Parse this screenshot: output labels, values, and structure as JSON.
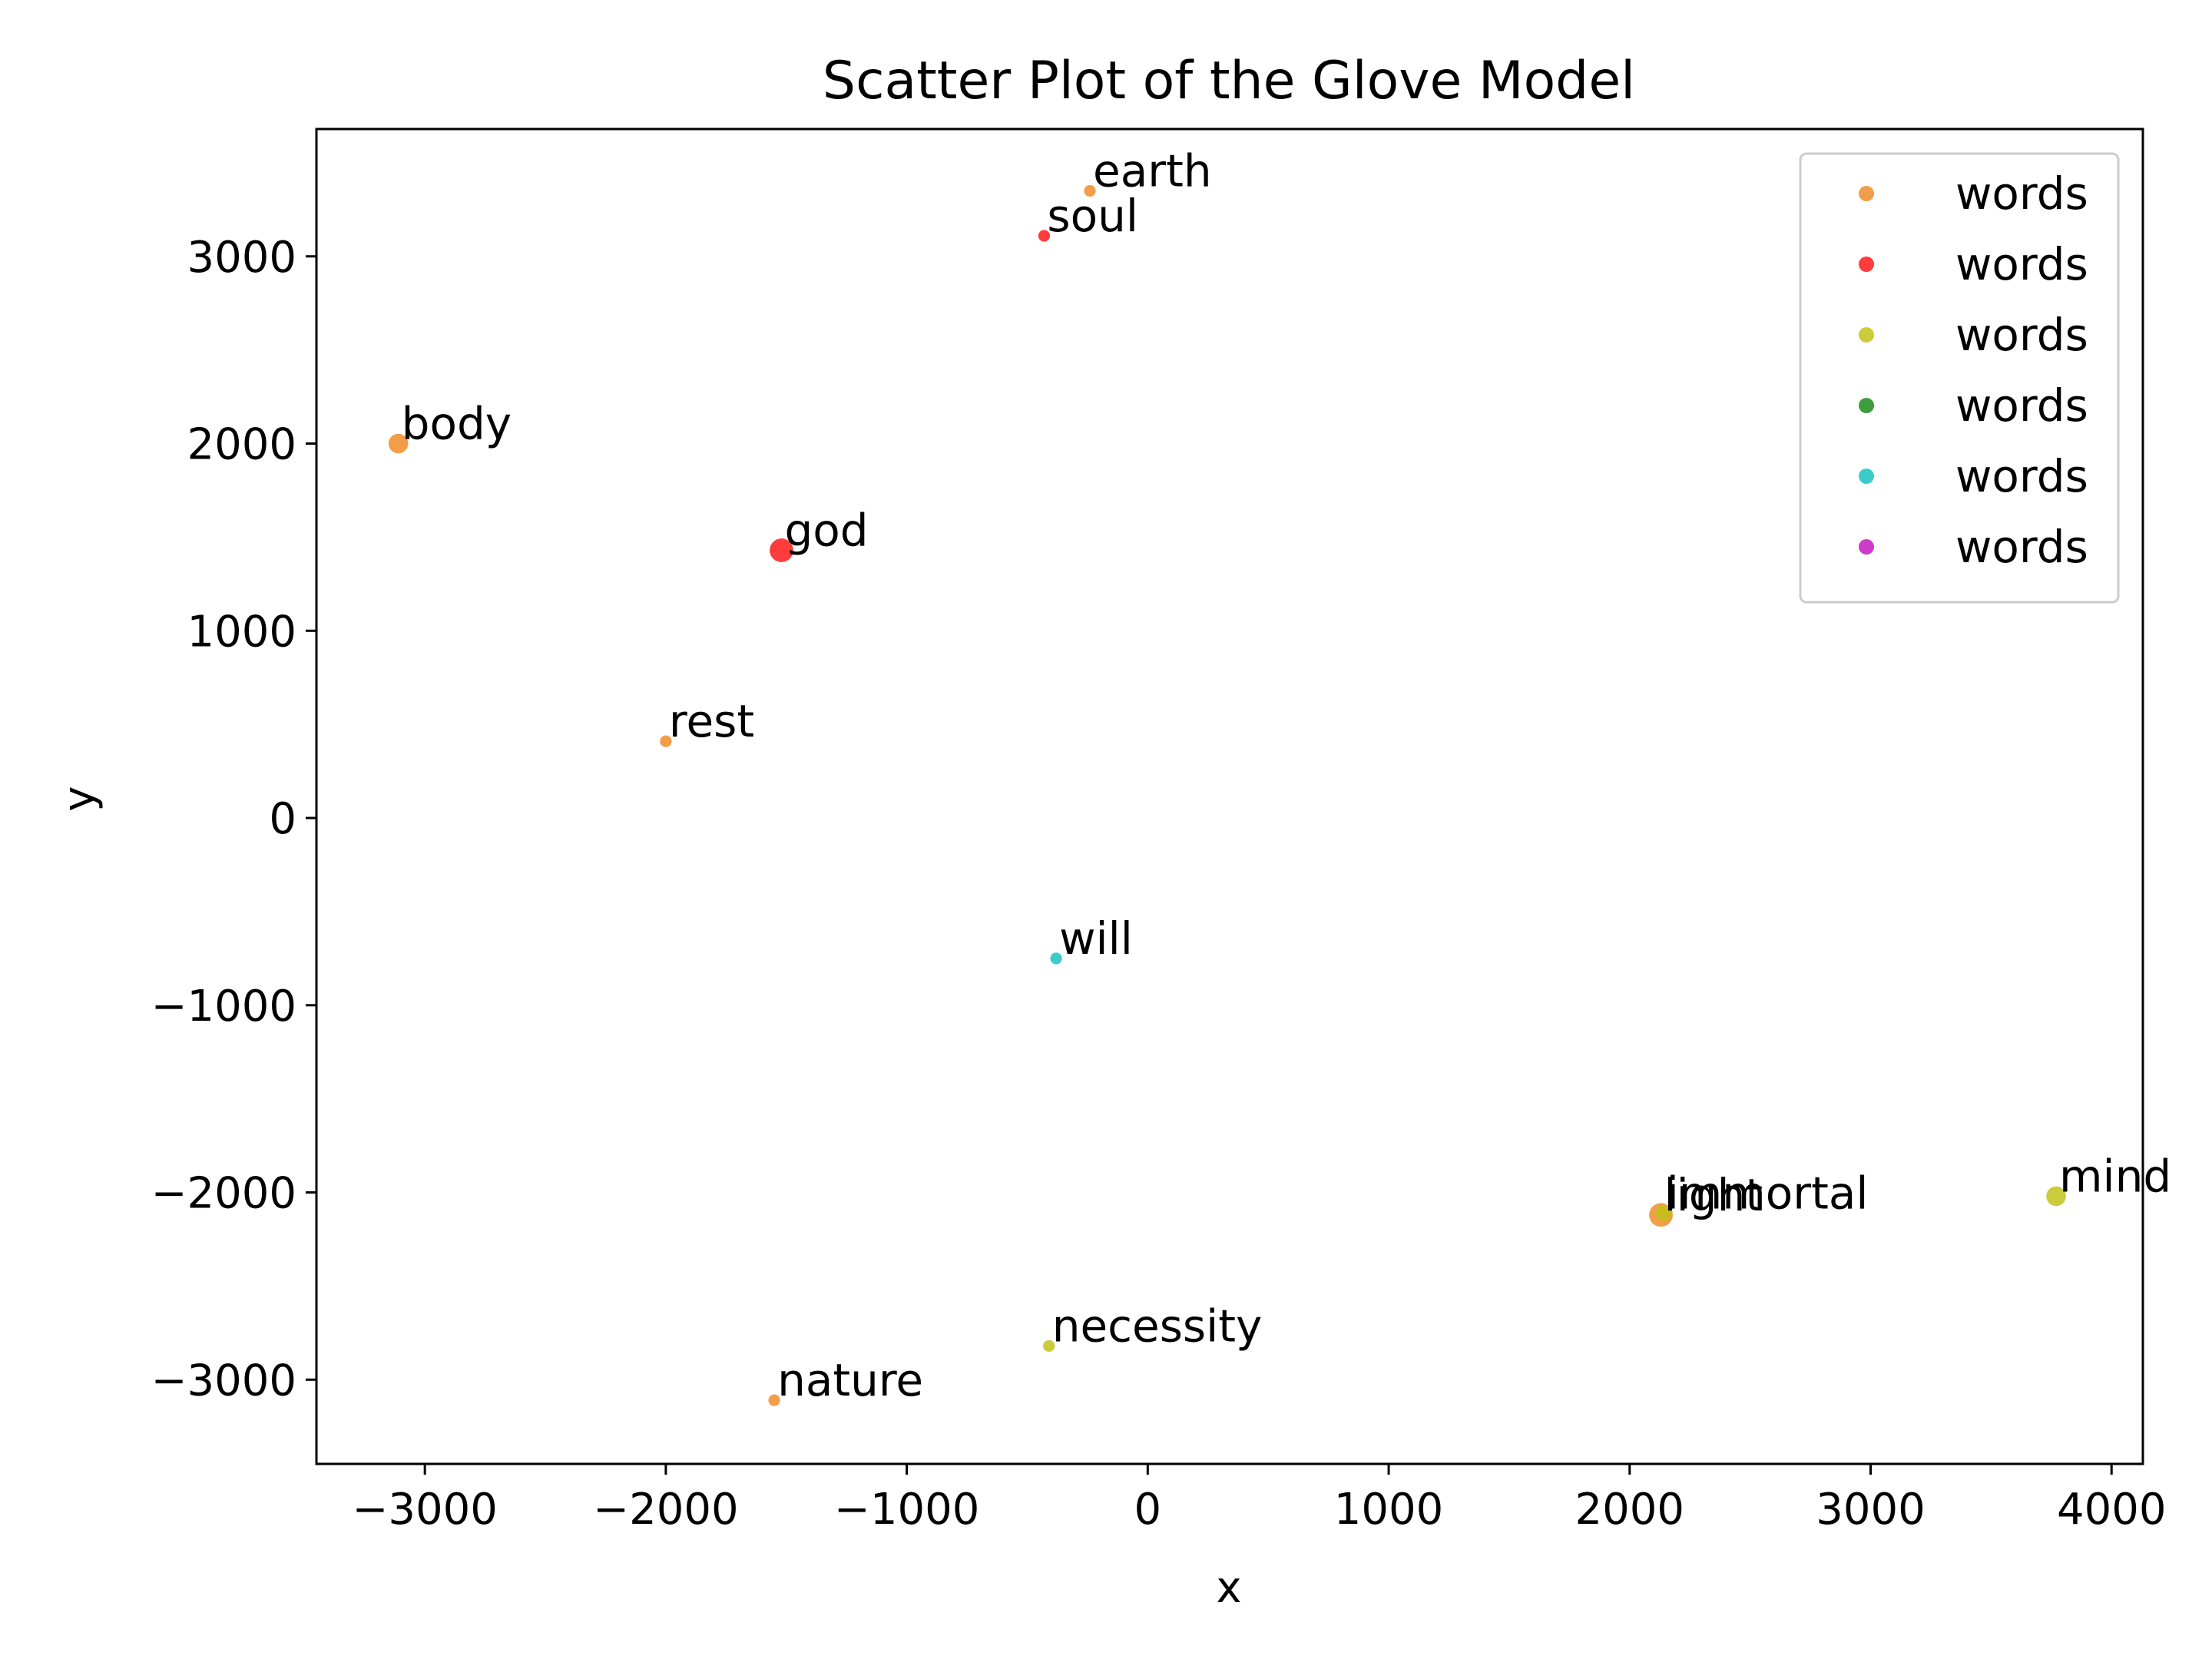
{
  "chart_data": {
    "type": "scatter",
    "title": "Scatter Plot of the Glove Model",
    "xlabel": "x",
    "ylabel": "y",
    "xlim": [
      -3450,
      4130
    ],
    "ylim": [
      -3450,
      3680
    ],
    "xticks": [
      -3000,
      -2000,
      -1000,
      0,
      1000,
      2000,
      3000,
      4000
    ],
    "yticks": [
      -3000,
      -2000,
      -1000,
      0,
      1000,
      2000,
      3000
    ],
    "xtick_labels": [
      "−3000",
      "−2000",
      "−1000",
      "0",
      "1000",
      "2000",
      "3000",
      "4000"
    ],
    "ytick_labels": [
      "−3000",
      "−2000",
      "−1000",
      "0",
      "1000",
      "2000",
      "3000"
    ],
    "grid": false,
    "legend": {
      "placement": "top-right",
      "entries": [
        {
          "label": "words",
          "color": "#f08c28"
        },
        {
          "label": "words",
          "color": "#ff1a1a"
        },
        {
          "label": "words",
          "color": "#c2c21a"
        },
        {
          "label": "words",
          "color": "#1a8c1a"
        },
        {
          "label": "words",
          "color": "#1ac2c2"
        },
        {
          "label": "words",
          "color": "#c21ac2"
        }
      ]
    },
    "points": [
      {
        "word": "earth",
        "x": -240,
        "y": 3350,
        "color": "#f08c28",
        "size": 1
      },
      {
        "word": "soul",
        "x": -430,
        "y": 3110,
        "color": "#ff1a1a",
        "size": 1
      },
      {
        "word": "body",
        "x": -3110,
        "y": 2000,
        "color": "#f08c28",
        "size": 3
      },
      {
        "word": "god",
        "x": -1520,
        "y": 1430,
        "color": "#ff1a1a",
        "size": 4
      },
      {
        "word": "rest",
        "x": -2000,
        "y": 410,
        "color": "#f08c28",
        "size": 1
      },
      {
        "word": "will",
        "x": -380,
        "y": -750,
        "color": "#1ac2c2",
        "size": 1
      },
      {
        "word": "light",
        "x": 2130,
        "y": -2120,
        "color": "#f08c28",
        "size": 4
      },
      {
        "word": "immortal",
        "x": 2140,
        "y": -2110,
        "color": "#c2c21a",
        "size": 2
      },
      {
        "word": "mind",
        "x": 3770,
        "y": -2020,
        "color": "#c2c21a",
        "size": 3
      },
      {
        "word": "necessity",
        "x": -410,
        "y": -2820,
        "color": "#c2c21a",
        "size": 1
      },
      {
        "word": "nature",
        "x": -1550,
        "y": -3110,
        "color": "#f08c28",
        "size": 1
      }
    ]
  }
}
